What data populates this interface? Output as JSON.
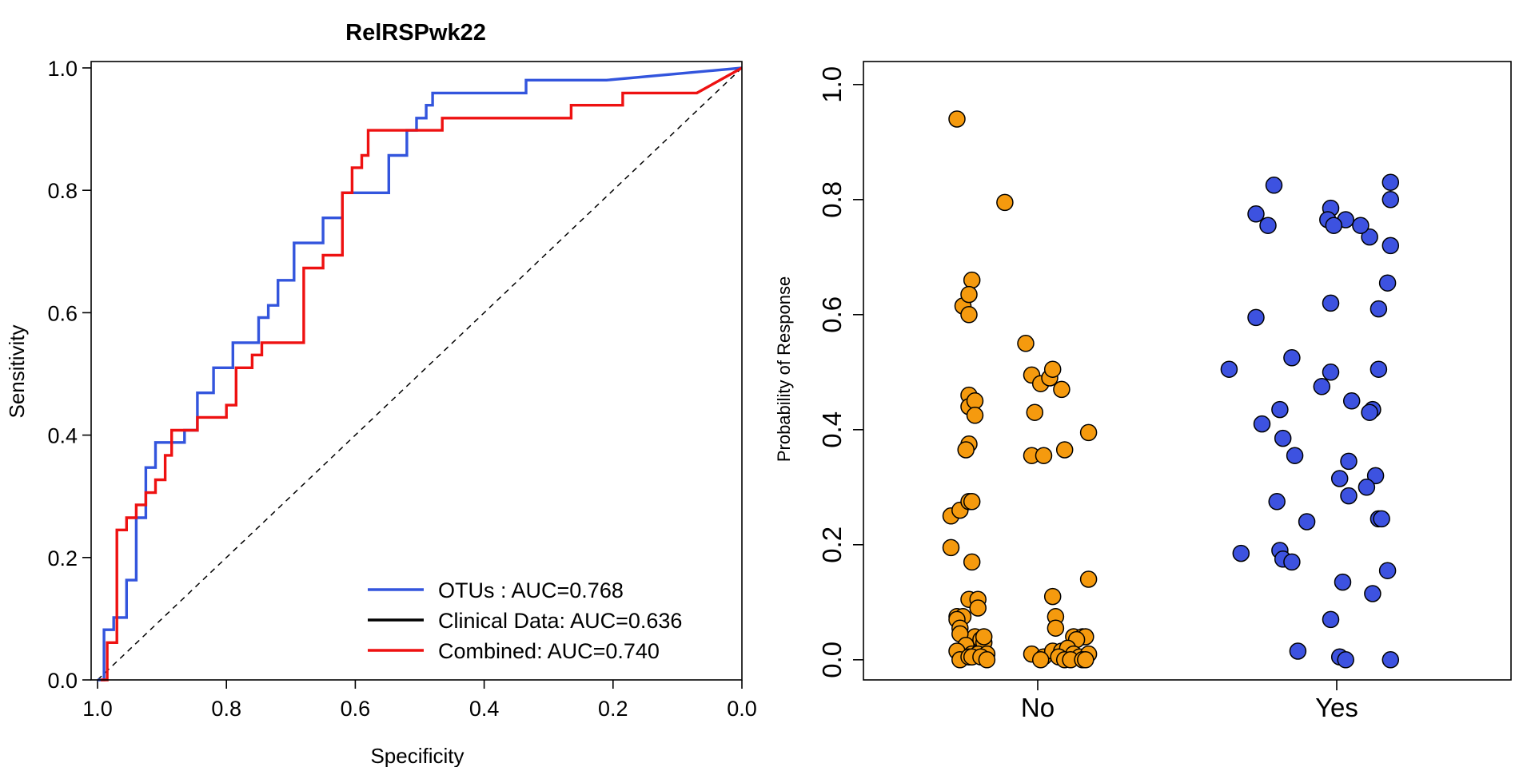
{
  "colors": {
    "otus": "#3355dd",
    "clinical": "#000000",
    "combined": "#ee1111",
    "no_points": "#f59a0e",
    "yes_points": "#3d52e0",
    "axis": "#000000"
  },
  "chart_data": [
    {
      "type": "line",
      "title": "RelRSPwk22",
      "xlabel": "Specificity",
      "ylabel": "Sensitivity",
      "xlim": [
        1.0,
        0.0
      ],
      "ylim": [
        0.0,
        1.0
      ],
      "x_reversed": true,
      "x_ticks": [
        "1.0",
        "0.8",
        "0.6",
        "0.4",
        "0.2",
        "0.0"
      ],
      "y_ticks": [
        "0.0",
        "0.2",
        "0.4",
        "0.6",
        "0.8",
        "1.0"
      ],
      "legend_position": "bottom-right",
      "diagonal": true,
      "series": [
        {
          "name": "OTUs : AUC=0.768",
          "color_key": "otus",
          "points": [
            [
              1.0,
              0.0
            ],
            [
              0.99,
              0.0
            ],
            [
              0.99,
              0.082
            ],
            [
              0.975,
              0.082
            ],
            [
              0.975,
              0.102
            ],
            [
              0.955,
              0.102
            ],
            [
              0.955,
              0.163
            ],
            [
              0.94,
              0.163
            ],
            [
              0.94,
              0.265
            ],
            [
              0.925,
              0.265
            ],
            [
              0.925,
              0.347
            ],
            [
              0.91,
              0.347
            ],
            [
              0.91,
              0.388
            ],
            [
              0.865,
              0.388
            ],
            [
              0.865,
              0.408
            ],
            [
              0.845,
              0.408
            ],
            [
              0.845,
              0.469
            ],
            [
              0.82,
              0.469
            ],
            [
              0.82,
              0.51
            ],
            [
              0.79,
              0.51
            ],
            [
              0.79,
              0.551
            ],
            [
              0.75,
              0.551
            ],
            [
              0.75,
              0.592
            ],
            [
              0.735,
              0.592
            ],
            [
              0.735,
              0.612
            ],
            [
              0.72,
              0.612
            ],
            [
              0.72,
              0.653
            ],
            [
              0.695,
              0.653
            ],
            [
              0.695,
              0.714
            ],
            [
              0.65,
              0.714
            ],
            [
              0.65,
              0.755
            ],
            [
              0.62,
              0.755
            ],
            [
              0.62,
              0.796
            ],
            [
              0.548,
              0.796
            ],
            [
              0.548,
              0.857
            ],
            [
              0.52,
              0.857
            ],
            [
              0.52,
              0.898
            ],
            [
              0.505,
              0.898
            ],
            [
              0.505,
              0.918
            ],
            [
              0.49,
              0.918
            ],
            [
              0.49,
              0.939
            ],
            [
              0.48,
              0.939
            ],
            [
              0.48,
              0.959
            ],
            [
              0.335,
              0.959
            ],
            [
              0.335,
              0.98
            ],
            [
              0.21,
              0.98
            ],
            [
              0.0,
              1.0
            ]
          ]
        },
        {
          "name": "Clinical Data: AUC=0.636",
          "color_key": "clinical",
          "points": []
        },
        {
          "name": "Combined: AUC=0.740",
          "color_key": "combined",
          "points": [
            [
              0.995,
              0.0
            ],
            [
              0.985,
              0.0
            ],
            [
              0.985,
              0.061
            ],
            [
              0.97,
              0.061
            ],
            [
              0.97,
              0.245
            ],
            [
              0.955,
              0.245
            ],
            [
              0.955,
              0.265
            ],
            [
              0.94,
              0.265
            ],
            [
              0.94,
              0.286
            ],
            [
              0.925,
              0.286
            ],
            [
              0.925,
              0.306
            ],
            [
              0.91,
              0.306
            ],
            [
              0.91,
              0.327
            ],
            [
              0.895,
              0.327
            ],
            [
              0.895,
              0.367
            ],
            [
              0.885,
              0.367
            ],
            [
              0.885,
              0.408
            ],
            [
              0.845,
              0.408
            ],
            [
              0.845,
              0.429
            ],
            [
              0.8,
              0.429
            ],
            [
              0.8,
              0.449
            ],
            [
              0.785,
              0.449
            ],
            [
              0.785,
              0.51
            ],
            [
              0.76,
              0.51
            ],
            [
              0.76,
              0.531
            ],
            [
              0.745,
              0.531
            ],
            [
              0.745,
              0.551
            ],
            [
              0.68,
              0.551
            ],
            [
              0.68,
              0.673
            ],
            [
              0.65,
              0.673
            ],
            [
              0.65,
              0.694
            ],
            [
              0.62,
              0.694
            ],
            [
              0.62,
              0.796
            ],
            [
              0.605,
              0.796
            ],
            [
              0.605,
              0.837
            ],
            [
              0.59,
              0.837
            ],
            [
              0.59,
              0.857
            ],
            [
              0.58,
              0.857
            ],
            [
              0.58,
              0.898
            ],
            [
              0.465,
              0.898
            ],
            [
              0.465,
              0.918
            ],
            [
              0.265,
              0.918
            ],
            [
              0.265,
              0.939
            ],
            [
              0.185,
              0.939
            ],
            [
              0.185,
              0.959
            ],
            [
              0.07,
              0.959
            ],
            [
              0.0,
              1.0
            ]
          ]
        }
      ]
    },
    {
      "type": "scatter",
      "ylabel": "Probability of Response",
      "categories": [
        "No",
        "Yes"
      ],
      "ylim": [
        -0.035,
        1.04
      ],
      "y_ticks": [
        "0.0",
        "0.2",
        "0.4",
        "0.6",
        "0.8",
        "1.0"
      ],
      "series": [
        {
          "name": "No",
          "color_key": "no_points",
          "points": [
            [
              -0.27,
              0.94
            ],
            [
              -0.11,
              0.795
            ],
            [
              -0.22,
              0.66
            ],
            [
              -0.25,
              0.615
            ],
            [
              -0.23,
              0.6
            ],
            [
              -0.23,
              0.635
            ],
            [
              -0.04,
              0.55
            ],
            [
              -0.02,
              0.495
            ],
            [
              0.01,
              0.48
            ],
            [
              0.04,
              0.49
            ],
            [
              0.05,
              0.505
            ],
            [
              -0.23,
              0.46
            ],
            [
              -0.23,
              0.44
            ],
            [
              -0.21,
              0.45
            ],
            [
              -0.01,
              0.43
            ],
            [
              -0.21,
              0.425
            ],
            [
              0.08,
              0.47
            ],
            [
              0.17,
              0.395
            ],
            [
              -0.23,
              0.375
            ],
            [
              -0.24,
              0.365
            ],
            [
              -0.02,
              0.355
            ],
            [
              0.02,
              0.355
            ],
            [
              0.09,
              0.365
            ],
            [
              -0.29,
              0.25
            ],
            [
              -0.26,
              0.26
            ],
            [
              -0.23,
              0.275
            ],
            [
              -0.22,
              0.275
            ],
            [
              -0.29,
              0.195
            ],
            [
              -0.22,
              0.17
            ],
            [
              0.17,
              0.14
            ],
            [
              -0.23,
              0.105
            ],
            [
              -0.2,
              0.105
            ],
            [
              -0.2,
              0.09
            ],
            [
              0.05,
              0.11
            ],
            [
              0.06,
              0.075
            ],
            [
              -0.27,
              0.075
            ],
            [
              -0.25,
              0.075
            ],
            [
              -0.27,
              0.07
            ],
            [
              -0.26,
              0.055
            ],
            [
              -0.21,
              0.04
            ],
            [
              -0.19,
              0.035
            ],
            [
              -0.18,
              0.03
            ],
            [
              -0.18,
              0.04
            ],
            [
              0.06,
              0.055
            ],
            [
              0.12,
              0.04
            ],
            [
              0.15,
              0.04
            ],
            [
              0.16,
              0.04
            ],
            [
              0.13,
              0.035
            ],
            [
              -0.26,
              0.045
            ],
            [
              -0.24,
              0.025
            ],
            [
              -0.27,
              0.015
            ],
            [
              -0.22,
              0.01
            ],
            [
              -0.2,
              0.01
            ],
            [
              -0.17,
              0.01
            ],
            [
              -0.02,
              0.01
            ],
            [
              0.02,
              0.005
            ],
            [
              0.05,
              0.015
            ],
            [
              0.08,
              0.015
            ],
            [
              0.1,
              0.02
            ],
            [
              0.12,
              0.01
            ],
            [
              0.14,
              0.005
            ],
            [
              0.17,
              0.01
            ],
            [
              -0.26,
              0.0
            ],
            [
              -0.23,
              0.005
            ],
            [
              -0.22,
              0.005
            ],
            [
              -0.19,
              0.005
            ],
            [
              -0.17,
              0.0
            ],
            [
              0.01,
              0.0
            ],
            [
              0.07,
              0.005
            ],
            [
              0.09,
              0.0
            ],
            [
              0.11,
              0.0
            ],
            [
              0.15,
              0.0
            ],
            [
              0.16,
              0.0
            ]
          ]
        },
        {
          "name": "Yes",
          "color_key": "yes_points",
          "points": [
            [
              0.79,
              0.825
            ],
            [
              0.98,
              0.785
            ],
            [
              0.97,
              0.765
            ],
            [
              1.03,
              0.765
            ],
            [
              1.11,
              0.735
            ],
            [
              0.73,
              0.775
            ],
            [
              0.77,
              0.755
            ],
            [
              0.99,
              0.755
            ],
            [
              1.08,
              0.755
            ],
            [
              1.18,
              0.72
            ],
            [
              1.18,
              0.83
            ],
            [
              1.18,
              0.8
            ],
            [
              1.17,
              0.655
            ],
            [
              1.14,
              0.61
            ],
            [
              0.98,
              0.62
            ],
            [
              0.73,
              0.595
            ],
            [
              0.64,
              0.505
            ],
            [
              0.85,
              0.525
            ],
            [
              1.14,
              0.505
            ],
            [
              0.98,
              0.5
            ],
            [
              0.95,
              0.475
            ],
            [
              1.12,
              0.435
            ],
            [
              1.11,
              0.43
            ],
            [
              1.05,
              0.45
            ],
            [
              0.75,
              0.41
            ],
            [
              0.81,
              0.435
            ],
            [
              0.82,
              0.385
            ],
            [
              0.86,
              0.355
            ],
            [
              1.04,
              0.345
            ],
            [
              1.13,
              0.32
            ],
            [
              1.01,
              0.315
            ],
            [
              1.04,
              0.285
            ],
            [
              1.1,
              0.3
            ],
            [
              0.8,
              0.275
            ],
            [
              0.9,
              0.24
            ],
            [
              1.14,
              0.245
            ],
            [
              1.15,
              0.245
            ],
            [
              0.68,
              0.185
            ],
            [
              0.81,
              0.19
            ],
            [
              0.82,
              0.175
            ],
            [
              0.85,
              0.17
            ],
            [
              1.02,
              0.135
            ],
            [
              1.17,
              0.155
            ],
            [
              1.12,
              0.115
            ],
            [
              0.98,
              0.07
            ],
            [
              0.87,
              0.015
            ],
            [
              1.01,
              0.005
            ],
            [
              1.03,
              0.0
            ],
            [
              1.18,
              0.0
            ]
          ]
        }
      ]
    }
  ]
}
